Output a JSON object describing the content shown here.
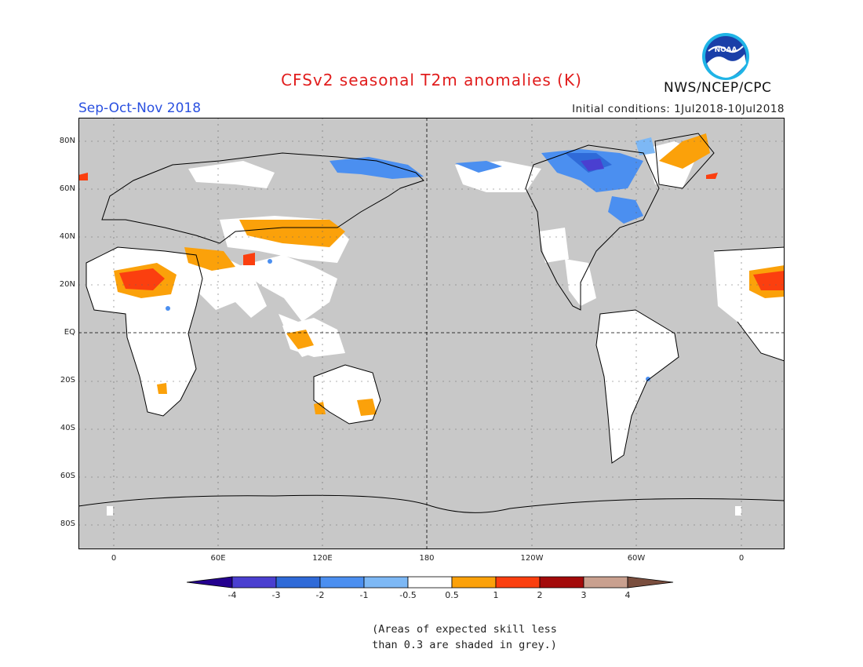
{
  "header": {
    "title": "CFSv2 seasonal T2m anomalies (K)",
    "season": "Sep-Oct-Nov 2018",
    "initial_conditions": "Initial conditions: 1Jul2018-10Jul2018",
    "organization": "NWS/NCEP/CPC",
    "logo_text": "NOAA"
  },
  "map": {
    "lat_labels": [
      "80N",
      "60N",
      "40N",
      "20N",
      "EQ",
      "20S",
      "40S",
      "60S",
      "80S"
    ],
    "lon_labels": [
      "0",
      "60E",
      "120E",
      "180",
      "120W",
      "60W",
      "0"
    ],
    "grey_color": "#c8c8c8",
    "skill_mask_note": "grey = expected skill less than 0.3"
  },
  "colorbar": {
    "labels": [
      "-4",
      "-3",
      "-2",
      "-1",
      "-0.5",
      "0.5",
      "1",
      "2",
      "3",
      "4"
    ],
    "colors": [
      "#24008f",
      "#4a3fd0",
      "#2f6ad8",
      "#4b8ff0",
      "#7db8f5",
      "#ffffff",
      "#fba10a",
      "#fb3f0f",
      "#a30a0a",
      "#c9a08f",
      "#7a4e3e"
    ]
  },
  "footnote": {
    "line1": "(Areas of expected skill less",
    "line2": "than 0.3 are shaded in grey.)"
  }
}
